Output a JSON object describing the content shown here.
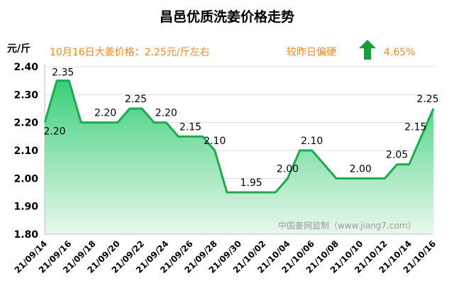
{
  "chart_data": {
    "type": "area",
    "title": "昌邑优质洗姜价格走势",
    "ylabel": "元/斤",
    "ylim": [
      1.8,
      2.4
    ],
    "yticks": [
      "2.40",
      "2.30",
      "2.20",
      "2.10",
      "2.00",
      "1.90",
      "1.80"
    ],
    "grid": true,
    "x": [
      "21/09/14",
      "21/09/15",
      "21/09/16",
      "21/09/17",
      "21/09/18",
      "21/09/19",
      "21/09/20",
      "21/09/21",
      "21/09/22",
      "21/09/23",
      "21/09/24",
      "21/09/25",
      "21/09/26",
      "21/09/27",
      "21/09/28",
      "21/09/29",
      "21/09/30",
      "21/10/01",
      "21/10/02",
      "21/10/03",
      "21/10/04",
      "21/10/05",
      "21/10/06",
      "21/10/07",
      "21/10/08",
      "21/10/09",
      "21/10/10",
      "21/10/11",
      "21/10/12",
      "21/10/13",
      "21/10/14",
      "21/10/15",
      "21/10/16"
    ],
    "values": [
      2.2,
      2.35,
      2.35,
      2.2,
      2.2,
      2.2,
      2.2,
      2.25,
      2.25,
      2.2,
      2.2,
      2.15,
      2.15,
      2.15,
      2.1,
      1.95,
      1.95,
      1.95,
      1.95,
      1.95,
      2.0,
      2.1,
      2.1,
      2.05,
      2.0,
      2.0,
      2.0,
      2.0,
      2.0,
      2.05,
      2.05,
      2.15,
      2.25
    ],
    "tick_labels": [
      "21/09/14",
      "21/09/16",
      "21/09/18",
      "21/09/20",
      "21/09/22",
      "21/09/24",
      "21/09/26",
      "21/09/28",
      "21/09/30",
      "21/10/02",
      "21/10/04",
      "21/10/06",
      "21/10/08",
      "21/10/10",
      "21/10/12",
      "21/10/14",
      "21/10/16"
    ],
    "data_labels": [
      {
        "index": 0,
        "text": "2.20"
      },
      {
        "index": 1,
        "text": "2.35"
      },
      {
        "index": 5,
        "text": "2.20"
      },
      {
        "index": 8,
        "text": "2.25"
      },
      {
        "index": 10,
        "text": "2.20"
      },
      {
        "index": 12,
        "text": "2.15"
      },
      {
        "index": 14,
        "text": "2.10"
      },
      {
        "index": 17,
        "text": "1.95"
      },
      {
        "index": 20,
        "text": "2.00"
      },
      {
        "index": 22,
        "text": "2.10"
      },
      {
        "index": 26,
        "text": "2.00"
      },
      {
        "index": 29,
        "text": "2.05"
      },
      {
        "index": 31,
        "text": "2.15"
      },
      {
        "index": 32,
        "text": "2.25"
      }
    ],
    "annotation_price": "10月16日大姜价格：2.25元/斤左右",
    "annotation_compare": "较昨日偏硬",
    "annotation_change": "4.65%",
    "trend": "up",
    "watermark": "中国姜网监制（www.jiang7.com）",
    "colors": {
      "line": "#1faa50",
      "fill_top": "#2ecc71",
      "fill_bottom": "#e6f7ea",
      "annotation": "#f08a24",
      "arrow": "#16a03c",
      "grid": "#d9d9d9",
      "title": "#000000"
    }
  }
}
